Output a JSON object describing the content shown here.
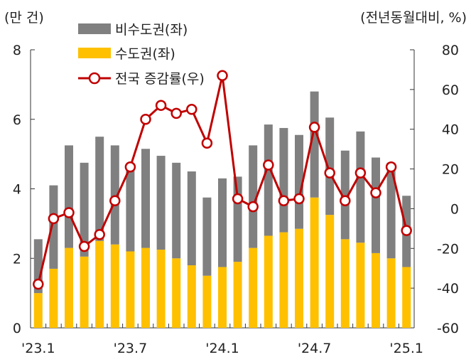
{
  "chart_data": {
    "type": "bar+line",
    "left_axis": {
      "unit": "(만 건)",
      "ylim": [
        0,
        8
      ],
      "ticks": [
        "0",
        "2",
        "4",
        "6",
        "8"
      ]
    },
    "right_axis": {
      "unit": "(전년동월대비, %)",
      "ylim": [
        -60,
        80
      ],
      "ticks": [
        "-60",
        "-40",
        "-20",
        "0",
        "20",
        "40",
        "60",
        "80"
      ]
    },
    "x_tick_labels": [
      {
        "index": 0,
        "label": "'23.1"
      },
      {
        "index": 6,
        "label": "'23.7"
      },
      {
        "index": 12,
        "label": "'24.1"
      },
      {
        "index": 18,
        "label": "'24.7"
      },
      {
        "index": 24,
        "label": "'25.1"
      }
    ],
    "categories": [
      "2023-01",
      "2023-02",
      "2023-03",
      "2023-04",
      "2023-05",
      "2023-06",
      "2023-07",
      "2023-08",
      "2023-09",
      "2023-10",
      "2023-11",
      "2023-12",
      "2024-01",
      "2024-02",
      "2024-03",
      "2024-04",
      "2024-05",
      "2024-06",
      "2024-07",
      "2024-08",
      "2024-09",
      "2024-10",
      "2024-11",
      "2024-12",
      "2025-01"
    ],
    "bar_series": [
      {
        "name": "수도권(좌)",
        "color": "#FFC000",
        "values": [
          1.0,
          1.7,
          2.3,
          2.05,
          2.5,
          2.4,
          2.2,
          2.3,
          2.25,
          2.0,
          1.8,
          1.5,
          1.75,
          1.9,
          2.3,
          2.65,
          2.75,
          2.85,
          3.75,
          3.25,
          2.55,
          2.45,
          2.15,
          2.0,
          1.75
        ]
      },
      {
        "name": "비수도권(좌)",
        "color": "#808080",
        "values": [
          1.55,
          2.4,
          2.95,
          2.7,
          3.0,
          2.85,
          2.4,
          2.85,
          2.7,
          2.75,
          2.7,
          2.25,
          2.55,
          2.45,
          2.95,
          3.2,
          3.0,
          2.7,
          3.05,
          2.8,
          2.55,
          3.2,
          2.75,
          2.75,
          2.05
        ]
      }
    ],
    "line_series": {
      "name": "전국 증감률(우)",
      "color": "#C00000",
      "values": [
        -38,
        -5,
        -2,
        -19,
        -13,
        4,
        21,
        45,
        52,
        48,
        50,
        33,
        67,
        5,
        1,
        22,
        4,
        5,
        41,
        18,
        4,
        18,
        8,
        21,
        -11
      ]
    }
  }
}
